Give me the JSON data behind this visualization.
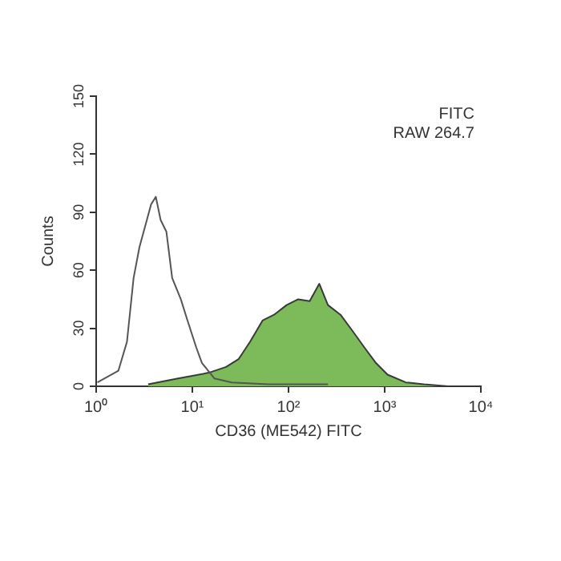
{
  "chart_data": {
    "type": "line",
    "xlabel": "CD36 (ME542) FITC",
    "ylabel": "Counts",
    "annotations": [
      "FITC",
      "RAW 264.7"
    ],
    "log": "x",
    "grid": false,
    "legend": false,
    "marker": "none",
    "xlim": [
      1,
      10000
    ],
    "xticks": [
      {
        "value": 1,
        "label": "10⁰"
      },
      {
        "value": 10,
        "label": "10¹"
      },
      {
        "value": 100,
        "label": "10²"
      },
      {
        "value": 1000,
        "label": "10³"
      },
      {
        "value": 10000,
        "label": "10⁴"
      }
    ],
    "ylim": [
      0,
      150
    ],
    "yticks": [
      0,
      30,
      60,
      90,
      120,
      150
    ],
    "series": [
      {
        "type": "line",
        "color": "#555555",
        "x": [
          1.03,
          1.7,
          2.09,
          2.45,
          2.82,
          3.24,
          3.72,
          4.17,
          4.68,
          5.37,
          6.17,
          7.59,
          8.91,
          11.0,
          12.6,
          17.0,
          25.7,
          61.7,
          257
        ],
        "values": [
          2,
          8,
          23,
          56,
          72,
          83,
          94,
          98,
          86,
          80,
          56,
          45,
          34,
          20,
          12,
          4,
          2,
          1,
          1
        ]
      },
      {
        "type": "area",
        "color": "#7dbb5a",
        "x": [
          3.47,
          7.08,
          14.8,
          22.4,
          30.2,
          39.8,
          53.7,
          70.8,
          95.5,
          126,
          166,
          209,
          257,
          347,
          457,
          617,
          813,
          1072,
          1660,
          2570,
          4571
        ],
        "values": [
          1,
          4,
          7,
          10,
          14,
          23,
          34,
          37,
          42,
          45,
          44,
          53,
          42,
          37,
          29,
          20,
          12,
          6,
          2,
          1,
          0
        ]
      }
    ]
  }
}
